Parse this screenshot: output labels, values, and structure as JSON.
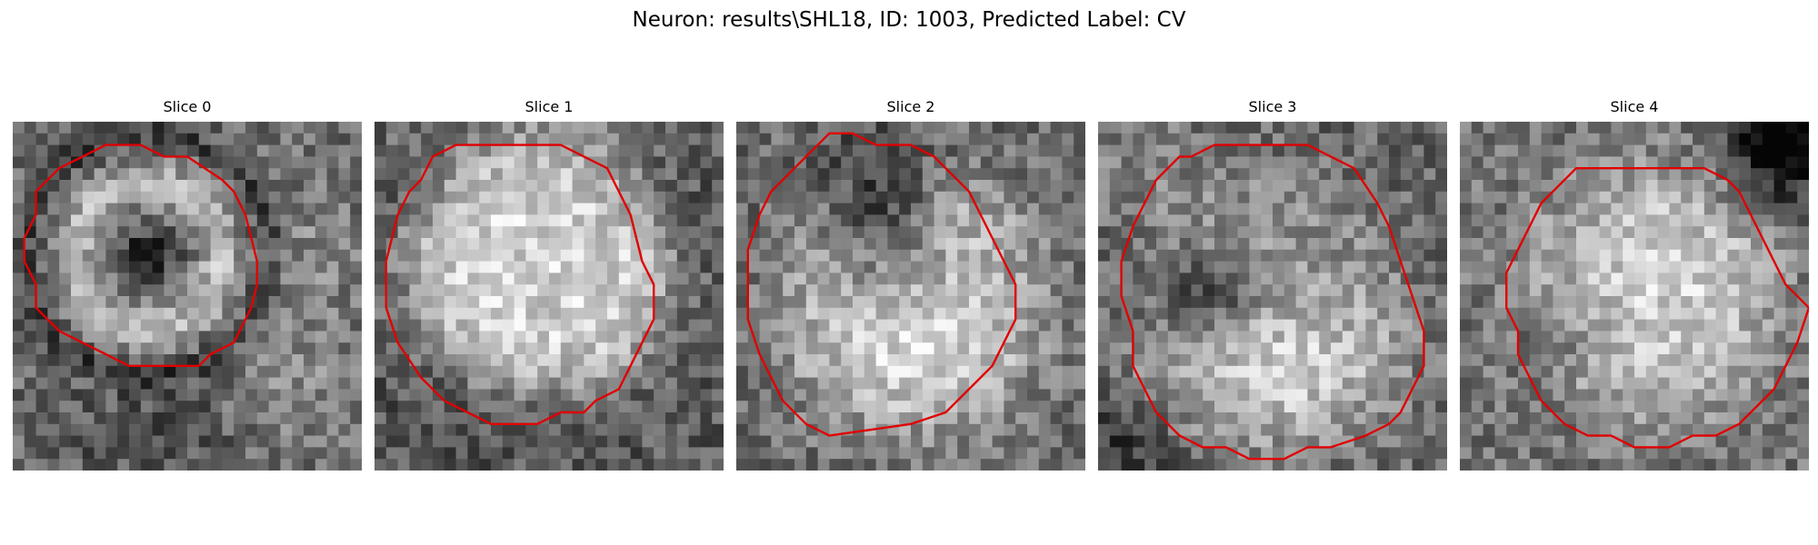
{
  "figure": {
    "title": "Neuron: results\\SHL18, ID: 1003, Predicted Label: CV"
  },
  "panels": [
    {
      "title": "Slice 0",
      "image": "grayscale-neuron-patch",
      "content": "ring-with-dark-center",
      "contour_color": "#e00000",
      "contour_shape": "small-octagon-upper-left"
    },
    {
      "title": "Slice 1",
      "image": "grayscale-neuron-patch",
      "content": "bright-filled-disc",
      "contour_color": "#e00000",
      "contour_shape": "large-octagon"
    },
    {
      "title": "Slice 2",
      "image": "grayscale-neuron-patch",
      "content": "dark-top-bright-bottom",
      "contour_color": "#e00000",
      "contour_shape": "large-octagon"
    },
    {
      "title": "Slice 3",
      "image": "grayscale-neuron-patch",
      "content": "dark-blob-left-bright-bottom",
      "contour_color": "#e00000",
      "contour_shape": "large-octagon"
    },
    {
      "title": "Slice 4",
      "image": "grayscale-neuron-patch",
      "content": "bright-disc-dark-corner-top-right",
      "contour_color": "#e00000",
      "contour_shape": "octagon-shifted-down-right"
    }
  ]
}
